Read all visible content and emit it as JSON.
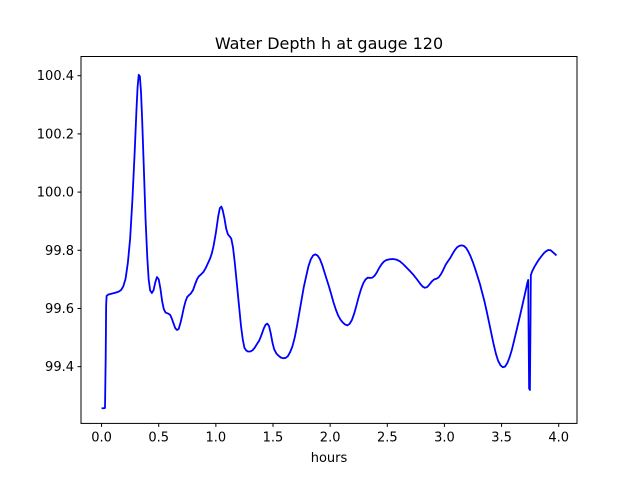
{
  "figure": {
    "background": "#ffffff",
    "text_color": "#000000"
  },
  "chart_data": {
    "type": "line",
    "title": "Water Depth h at gauge 120",
    "xlabel": "hours",
    "ylabel": "",
    "xlim": [
      -0.18,
      4.16
    ],
    "ylim": [
      99.205,
      100.466
    ],
    "x_ticks": [
      0.0,
      0.5,
      1.0,
      1.5,
      2.0,
      2.5,
      3.0,
      3.5,
      4.0
    ],
    "x_tick_labels": [
      "0.0",
      "0.5",
      "1.0",
      "1.5",
      "2.0",
      "2.5",
      "3.0",
      "3.5",
      "4.0"
    ],
    "y_ticks": [
      99.4,
      99.6,
      99.8,
      100.0,
      100.2,
      100.4
    ],
    "y_tick_labels": [
      "99.4",
      "99.6",
      "99.8",
      "100.0",
      "100.2",
      "100.4"
    ],
    "grid": false,
    "legend": null,
    "axes_color": "#000000",
    "series": [
      {
        "name": "water-depth-h-gauge-120",
        "color": "#0000ff",
        "line_width": 1.8,
        "points": [
          [
            0.0,
            99.257
          ],
          [
            0.015,
            99.257
          ],
          [
            0.03,
            99.258
          ],
          [
            0.036,
            99.43
          ],
          [
            0.04,
            99.61
          ],
          [
            0.044,
            99.643
          ],
          [
            0.06,
            99.648
          ],
          [
            0.09,
            99.651
          ],
          [
            0.12,
            99.654
          ],
          [
            0.15,
            99.658
          ],
          [
            0.17,
            99.663
          ],
          [
            0.19,
            99.676
          ],
          [
            0.21,
            99.702
          ],
          [
            0.23,
            99.757
          ],
          [
            0.25,
            99.84
          ],
          [
            0.27,
            99.975
          ],
          [
            0.29,
            100.14
          ],
          [
            0.305,
            100.28
          ],
          [
            0.315,
            100.36
          ],
          [
            0.325,
            100.403
          ],
          [
            0.335,
            100.398
          ],
          [
            0.345,
            100.345
          ],
          [
            0.355,
            100.25
          ],
          [
            0.37,
            100.08
          ],
          [
            0.385,
            99.905
          ],
          [
            0.4,
            99.775
          ],
          [
            0.412,
            99.7
          ],
          [
            0.425,
            99.662
          ],
          [
            0.44,
            99.653
          ],
          [
            0.455,
            99.663
          ],
          [
            0.47,
            99.69
          ],
          [
            0.485,
            99.708
          ],
          [
            0.5,
            99.7
          ],
          [
            0.515,
            99.668
          ],
          [
            0.53,
            99.625
          ],
          [
            0.545,
            99.597
          ],
          [
            0.56,
            99.586
          ],
          [
            0.58,
            99.583
          ],
          [
            0.6,
            99.578
          ],
          [
            0.615,
            99.565
          ],
          [
            0.63,
            99.548
          ],
          [
            0.645,
            99.532
          ],
          [
            0.66,
            99.526
          ],
          [
            0.675,
            99.53
          ],
          [
            0.69,
            99.55
          ],
          [
            0.705,
            99.575
          ],
          [
            0.72,
            99.603
          ],
          [
            0.735,
            99.625
          ],
          [
            0.75,
            99.64
          ],
          [
            0.765,
            99.646
          ],
          [
            0.78,
            99.651
          ],
          [
            0.8,
            99.663
          ],
          [
            0.82,
            99.685
          ],
          [
            0.835,
            99.7
          ],
          [
            0.85,
            99.71
          ],
          [
            0.87,
            99.717
          ],
          [
            0.89,
            99.725
          ],
          [
            0.91,
            99.738
          ],
          [
            0.93,
            99.755
          ],
          [
            0.95,
            99.772
          ],
          [
            0.965,
            99.79
          ],
          [
            0.98,
            99.815
          ],
          [
            1.0,
            99.86
          ],
          [
            1.02,
            99.915
          ],
          [
            1.035,
            99.945
          ],
          [
            1.048,
            99.95
          ],
          [
            1.06,
            99.938
          ],
          [
            1.075,
            99.91
          ],
          [
            1.09,
            99.875
          ],
          [
            1.105,
            99.855
          ],
          [
            1.12,
            99.848
          ],
          [
            1.135,
            99.84
          ],
          [
            1.15,
            99.81
          ],
          [
            1.165,
            99.76
          ],
          [
            1.18,
            99.7
          ],
          [
            1.2,
            99.62
          ],
          [
            1.22,
            99.54
          ],
          [
            1.235,
            99.495
          ],
          [
            1.25,
            99.465
          ],
          [
            1.265,
            99.456
          ],
          [
            1.28,
            99.452
          ],
          [
            1.3,
            99.452
          ],
          [
            1.32,
            99.456
          ],
          [
            1.34,
            99.465
          ],
          [
            1.36,
            99.478
          ],
          [
            1.38,
            99.49
          ],
          [
            1.4,
            99.51
          ],
          [
            1.42,
            99.532
          ],
          [
            1.435,
            99.544
          ],
          [
            1.45,
            99.548
          ],
          [
            1.465,
            99.54
          ],
          [
            1.48,
            99.515
          ],
          [
            1.495,
            99.483
          ],
          [
            1.51,
            99.46
          ],
          [
            1.53,
            99.445
          ],
          [
            1.55,
            99.437
          ],
          [
            1.57,
            99.431
          ],
          [
            1.59,
            99.429
          ],
          [
            1.61,
            99.43
          ],
          [
            1.63,
            99.436
          ],
          [
            1.65,
            99.45
          ],
          [
            1.67,
            99.47
          ],
          [
            1.69,
            99.5
          ],
          [
            1.71,
            99.54
          ],
          [
            1.73,
            99.585
          ],
          [
            1.75,
            99.63
          ],
          [
            1.77,
            99.675
          ],
          [
            1.79,
            99.71
          ],
          [
            1.81,
            99.745
          ],
          [
            1.83,
            99.768
          ],
          [
            1.85,
            99.782
          ],
          [
            1.87,
            99.786
          ],
          [
            1.89,
            99.782
          ],
          [
            1.91,
            99.77
          ],
          [
            1.93,
            99.75
          ],
          [
            1.95,
            99.725
          ],
          [
            1.97,
            99.7
          ],
          [
            1.99,
            99.675
          ],
          [
            2.01,
            99.648
          ],
          [
            2.03,
            99.62
          ],
          [
            2.05,
            99.596
          ],
          [
            2.07,
            99.576
          ],
          [
            2.09,
            99.562
          ],
          [
            2.11,
            99.552
          ],
          [
            2.13,
            99.545
          ],
          [
            2.15,
            99.542
          ],
          [
            2.17,
            99.547
          ],
          [
            2.19,
            99.56
          ],
          [
            2.21,
            99.582
          ],
          [
            2.23,
            99.61
          ],
          [
            2.25,
            99.64
          ],
          [
            2.27,
            99.666
          ],
          [
            2.29,
            99.687
          ],
          [
            2.31,
            99.7
          ],
          [
            2.33,
            99.706
          ],
          [
            2.35,
            99.705
          ],
          [
            2.37,
            99.706
          ],
          [
            2.39,
            99.713
          ],
          [
            2.41,
            99.725
          ],
          [
            2.43,
            99.74
          ],
          [
            2.45,
            99.752
          ],
          [
            2.47,
            99.761
          ],
          [
            2.49,
            99.766
          ],
          [
            2.52,
            99.769
          ],
          [
            2.55,
            99.77
          ],
          [
            2.58,
            99.768
          ],
          [
            2.61,
            99.762
          ],
          [
            2.64,
            99.752
          ],
          [
            2.67,
            99.74
          ],
          [
            2.7,
            99.728
          ],
          [
            2.73,
            99.715
          ],
          [
            2.76,
            99.7
          ],
          [
            2.79,
            99.684
          ],
          [
            2.81,
            99.675
          ],
          [
            2.83,
            99.671
          ],
          [
            2.85,
            99.674
          ],
          [
            2.87,
            99.683
          ],
          [
            2.89,
            99.693
          ],
          [
            2.91,
            99.7
          ],
          [
            2.93,
            99.702
          ],
          [
            2.95,
            99.707
          ],
          [
            2.97,
            99.718
          ],
          [
            2.99,
            99.733
          ],
          [
            3.01,
            99.75
          ],
          [
            3.03,
            99.762
          ],
          [
            3.05,
            99.773
          ],
          [
            3.07,
            99.787
          ],
          [
            3.09,
            99.8
          ],
          [
            3.11,
            99.81
          ],
          [
            3.13,
            99.815
          ],
          [
            3.15,
            99.817
          ],
          [
            3.17,
            99.815
          ],
          [
            3.19,
            99.808
          ],
          [
            3.21,
            99.795
          ],
          [
            3.23,
            99.778
          ],
          [
            3.25,
            99.758
          ],
          [
            3.27,
            99.735
          ],
          [
            3.29,
            99.71
          ],
          [
            3.31,
            99.685
          ],
          [
            3.33,
            99.655
          ],
          [
            3.35,
            99.625
          ],
          [
            3.37,
            99.59
          ],
          [
            3.39,
            99.553
          ],
          [
            3.41,
            99.515
          ],
          [
            3.43,
            99.478
          ],
          [
            3.45,
            99.445
          ],
          [
            3.47,
            99.42
          ],
          [
            3.49,
            99.405
          ],
          [
            3.51,
            99.398
          ],
          [
            3.53,
            99.4
          ],
          [
            3.55,
            99.412
          ],
          [
            3.57,
            99.432
          ],
          [
            3.59,
            99.458
          ],
          [
            3.61,
            99.49
          ],
          [
            3.63,
            99.523
          ],
          [
            3.65,
            99.556
          ],
          [
            3.67,
            99.59
          ],
          [
            3.69,
            99.625
          ],
          [
            3.71,
            99.66
          ],
          [
            3.725,
            99.687
          ],
          [
            3.733,
            99.698
          ],
          [
            3.737,
            99.5
          ],
          [
            3.741,
            99.325
          ],
          [
            3.748,
            99.32
          ],
          [
            3.752,
            99.5
          ],
          [
            3.756,
            99.715
          ],
          [
            3.77,
            99.73
          ],
          [
            3.79,
            99.745
          ],
          [
            3.81,
            99.758
          ],
          [
            3.83,
            99.77
          ],
          [
            3.85,
            99.78
          ],
          [
            3.87,
            99.79
          ],
          [
            3.89,
            99.797
          ],
          [
            3.91,
            99.801
          ],
          [
            3.93,
            99.8
          ],
          [
            3.95,
            99.793
          ],
          [
            3.97,
            99.786
          ],
          [
            3.98,
            99.782
          ]
        ]
      }
    ]
  }
}
